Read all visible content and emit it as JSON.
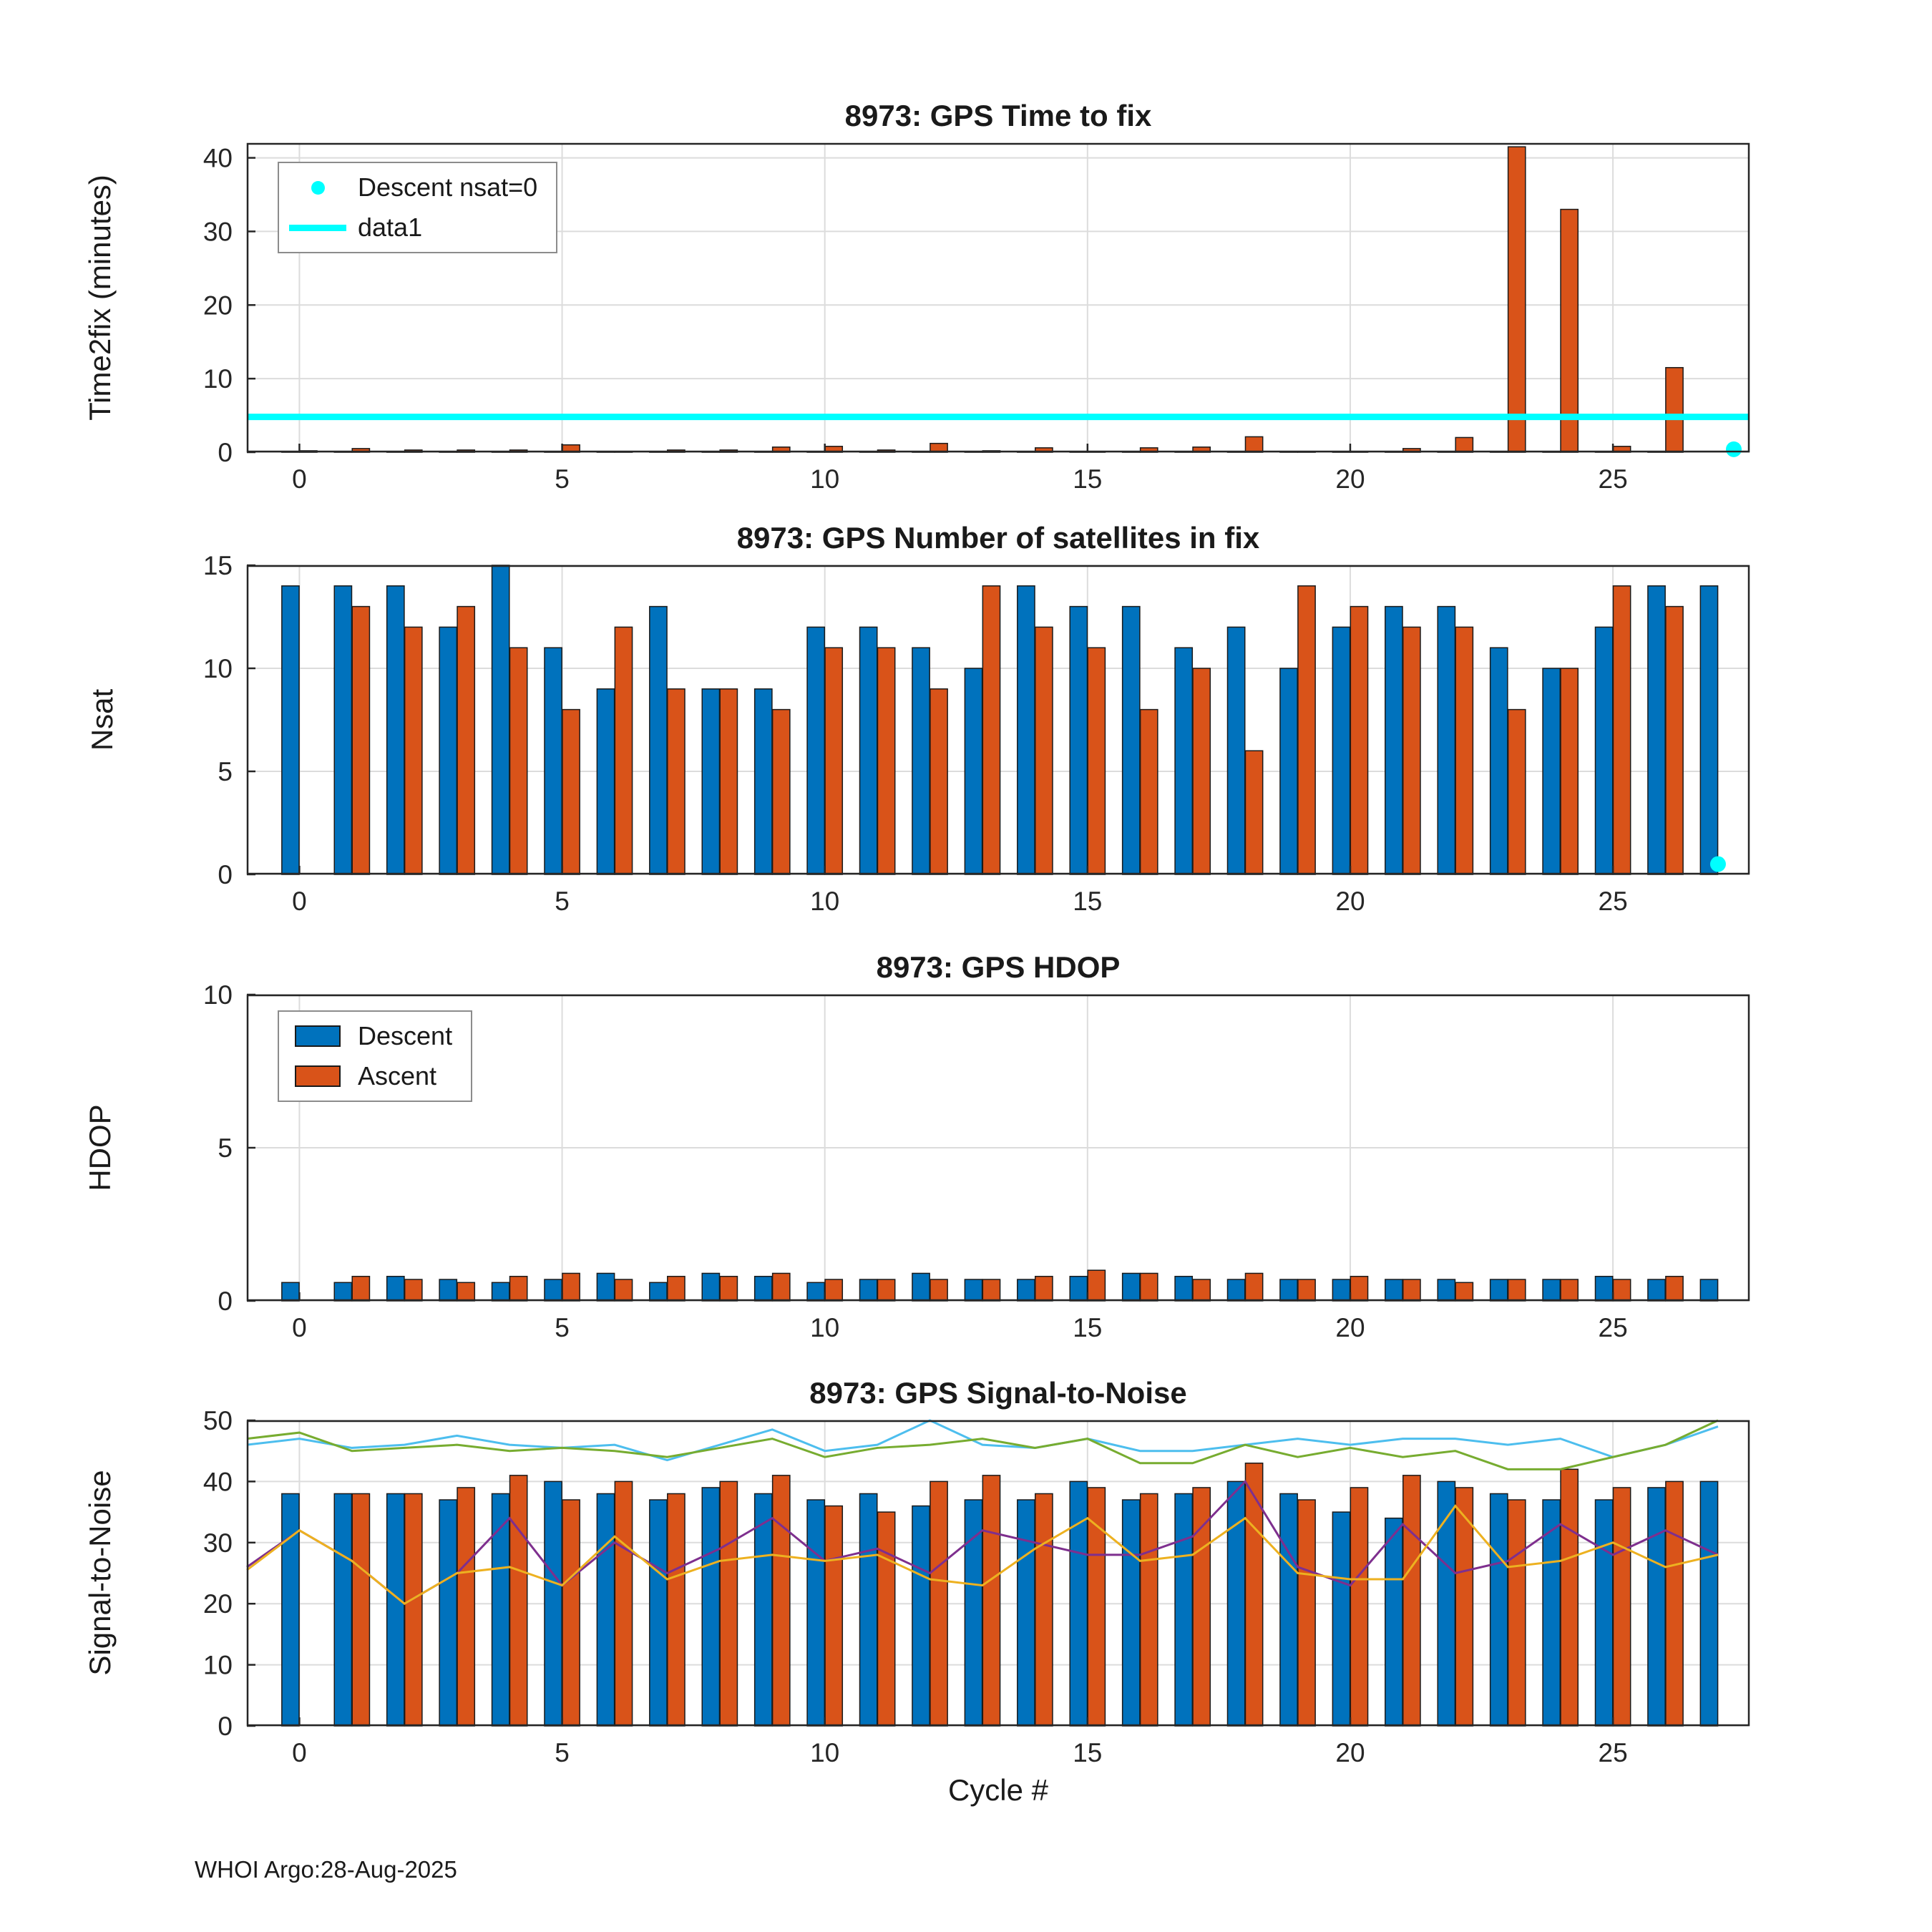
{
  "figure": {
    "footer": "WHOI Argo:28-Aug-2025",
    "xlabel": "Cycle #",
    "colors": {
      "descent": "#0072BD",
      "ascent": "#D95319",
      "cyan": "#00FFFF",
      "max_snr_descent": "#4DBEEE",
      "max_snr_ascent": "#77AC30",
      "min_snr_descent": "#7E2F8E",
      "min_snr_ascent": "#EDB120",
      "grid": "#dcdcdc",
      "axis": "#262626"
    }
  },
  "chart_data": [
    {
      "type": "bar",
      "title": "8973: GPS Time to fix",
      "ylabel": "Time2fix (minutes)",
      "xlim": [
        -1,
        27.6
      ],
      "ylim": [
        0,
        42
      ],
      "xticks": [
        0,
        5,
        10,
        15,
        20,
        25
      ],
      "yticks": [
        0,
        10,
        20,
        30,
        40
      ],
      "x": [
        0,
        1,
        2,
        3,
        4,
        5,
        6,
        7,
        8,
        9,
        10,
        11,
        12,
        13,
        14,
        15,
        16,
        17,
        18,
        19,
        20,
        21,
        22,
        23,
        24,
        25,
        26,
        27
      ],
      "series": [
        {
          "name": "Descent",
          "color": "#0072BD",
          "values": [
            0.1,
            0.1,
            0.1,
            0.1,
            0.1,
            0.1,
            0.1,
            0.1,
            0.1,
            0.1,
            0.1,
            0.1,
            0.1,
            0.1,
            0.1,
            0.1,
            0.1,
            0.1,
            0.1,
            0.1,
            0.1,
            0.1,
            0.1,
            0.1,
            0.1,
            0.1,
            0.1,
            0
          ]
        },
        {
          "name": "Ascent",
          "color": "#D95319",
          "values": [
            0.2,
            0.5,
            0.3,
            0.3,
            0.3,
            1,
            0.1,
            0.3,
            0.3,
            0.7,
            0.8,
            0.3,
            1.2,
            0.2,
            0.6,
            0.1,
            0.6,
            0.7,
            2.1,
            0.1,
            0.1,
            0.5,
            2,
            41.5,
            33,
            0.8,
            11.5,
            0
          ]
        }
      ],
      "hline": {
        "y": 4.8,
        "color": "#00FFFF",
        "label": "data1"
      },
      "markers": [
        {
          "x": 27.3,
          "y": 0.4,
          "color": "#00FFFF",
          "label": "Descent nsat=0"
        }
      ],
      "legend": [
        "Descent nsat=0",
        "data1"
      ]
    },
    {
      "type": "bar",
      "title": "8973: GPS Number of satellites in fix",
      "ylabel": "Nsat",
      "xlim": [
        -1,
        27.6
      ],
      "ylim": [
        0,
        15
      ],
      "xticks": [
        0,
        5,
        10,
        15,
        20,
        25
      ],
      "yticks": [
        0,
        5,
        10,
        15
      ],
      "x": [
        0,
        1,
        2,
        3,
        4,
        5,
        6,
        7,
        8,
        9,
        10,
        11,
        12,
        13,
        14,
        15,
        16,
        17,
        18,
        19,
        20,
        21,
        22,
        23,
        24,
        25,
        26,
        27
      ],
      "series": [
        {
          "name": "Descent",
          "color": "#0072BD",
          "values": [
            14,
            14,
            14,
            12,
            15,
            11,
            9,
            13,
            9,
            9,
            12,
            12,
            11,
            10,
            14,
            13,
            13,
            11,
            12,
            10,
            12,
            13,
            13,
            11,
            10,
            12,
            14,
            14
          ]
        },
        {
          "name": "Ascent",
          "color": "#D95319",
          "values": [
            0,
            13,
            12,
            13,
            11,
            8,
            12,
            9,
            9,
            8,
            11,
            11,
            9,
            14,
            12,
            11,
            8,
            10,
            6,
            14,
            13,
            12,
            12,
            8,
            10,
            14,
            13,
            0
          ]
        }
      ],
      "markers": [
        {
          "x": 27,
          "y": 0.5,
          "color": "#00FFFF",
          "label": "Descent nsat=0"
        }
      ]
    },
    {
      "type": "bar",
      "title": "8973: GPS HDOP",
      "ylabel": "HDOP",
      "xlim": [
        -1,
        27.6
      ],
      "ylim": [
        0,
        10
      ],
      "xticks": [
        0,
        5,
        10,
        15,
        20,
        25
      ],
      "yticks": [
        0,
        5,
        10
      ],
      "x": [
        0,
        1,
        2,
        3,
        4,
        5,
        6,
        7,
        8,
        9,
        10,
        11,
        12,
        13,
        14,
        15,
        16,
        17,
        18,
        19,
        20,
        21,
        22,
        23,
        24,
        25,
        26,
        27
      ],
      "series": [
        {
          "name": "Descent",
          "color": "#0072BD",
          "values": [
            0.6,
            0.6,
            0.8,
            0.7,
            0.6,
            0.7,
            0.9,
            0.6,
            0.9,
            0.8,
            0.6,
            0.7,
            0.9,
            0.7,
            0.7,
            0.8,
            0.9,
            0.8,
            0.7,
            0.7,
            0.7,
            0.7,
            0.7,
            0.7,
            0.7,
            0.8,
            0.7,
            0.7
          ]
        },
        {
          "name": "Ascent",
          "color": "#D95319",
          "values": [
            0,
            0.8,
            0.7,
            0.6,
            0.8,
            0.9,
            0.7,
            0.8,
            0.8,
            0.9,
            0.7,
            0.7,
            0.7,
            0.7,
            0.8,
            1.0,
            0.9,
            0.7,
            0.9,
            0.7,
            0.8,
            0.7,
            0.6,
            0.7,
            0.7,
            0.7,
            0.8,
            0
          ]
        }
      ],
      "legend": [
        "Descent",
        "Ascent"
      ]
    },
    {
      "type": "bar",
      "title": "8973: GPS Signal-to-Noise",
      "ylabel": "Signal-to-Noise",
      "xlabel": "Cycle #",
      "xlim": [
        -1,
        27.6
      ],
      "ylim": [
        0,
        50
      ],
      "xticks": [
        0,
        5,
        10,
        15,
        20,
        25
      ],
      "yticks": [
        0,
        10,
        20,
        30,
        40,
        50
      ],
      "x": [
        0,
        1,
        2,
        3,
        4,
        5,
        6,
        7,
        8,
        9,
        10,
        11,
        12,
        13,
        14,
        15,
        16,
        17,
        18,
        19,
        20,
        21,
        22,
        23,
        24,
        25,
        26,
        27
      ],
      "series": [
        {
          "name": "Descent",
          "color": "#0072BD",
          "values": [
            38,
            38,
            38,
            37,
            38,
            40,
            38,
            37,
            39,
            38,
            37,
            38,
            36,
            37,
            37,
            40,
            37,
            38,
            40,
            38,
            35,
            34,
            40,
            38,
            37,
            37,
            39,
            40
          ]
        },
        {
          "name": "Ascent",
          "color": "#D95319",
          "values": [
            0,
            38,
            38,
            39,
            41,
            37,
            40,
            38,
            40,
            41,
            36,
            35,
            40,
            41,
            38,
            39,
            38,
            39,
            43,
            37,
            39,
            41,
            39,
            37,
            42,
            39,
            40,
            0
          ]
        }
      ],
      "lines_x": [
        -1,
        0,
        1,
        2,
        3,
        4,
        5,
        6,
        7,
        8,
        9,
        10,
        11,
        12,
        13,
        14,
        15,
        16,
        17,
        18,
        19,
        20,
        21,
        22,
        23,
        24,
        25,
        26,
        27
      ],
      "lines": [
        {
          "name": "max-snr-descent",
          "color": "#4DBEEE",
          "values": [
            46,
            47,
            45.5,
            46,
            47.5,
            46,
            45.5,
            46,
            43.5,
            46,
            48.5,
            45,
            46,
            50,
            46,
            45.5,
            47,
            45,
            45,
            46,
            47,
            46,
            47,
            47,
            46,
            47,
            44,
            46,
            49
          ]
        },
        {
          "name": "max-snr-ascent",
          "color": "#77AC30",
          "values": [
            47,
            48,
            45,
            45.5,
            46,
            45,
            45.5,
            45,
            44,
            45.5,
            47,
            44,
            45.5,
            46,
            47,
            45.5,
            47,
            43,
            43,
            46,
            44,
            45.5,
            44,
            45,
            42,
            42,
            44,
            46,
            50
          ]
        },
        {
          "name": "min-snr-descent",
          "color": "#7E2F8E",
          "values": [
            26,
            32,
            27,
            20,
            25,
            34,
            23,
            30,
            25,
            29,
            34,
            27,
            29,
            25,
            32,
            30,
            28,
            28,
            31,
            40,
            26,
            23,
            33,
            25,
            27,
            33,
            28,
            32,
            28
          ]
        },
        {
          "name": "min-snr-ascent",
          "color": "#EDB120",
          "values": [
            25.5,
            32,
            27,
            20,
            25,
            26,
            23,
            31,
            24,
            27,
            28,
            27,
            28,
            24,
            23,
            29,
            34,
            27,
            28,
            34,
            25,
            24,
            24,
            36,
            26,
            27,
            30,
            26,
            28
          ]
        }
      ]
    }
  ]
}
